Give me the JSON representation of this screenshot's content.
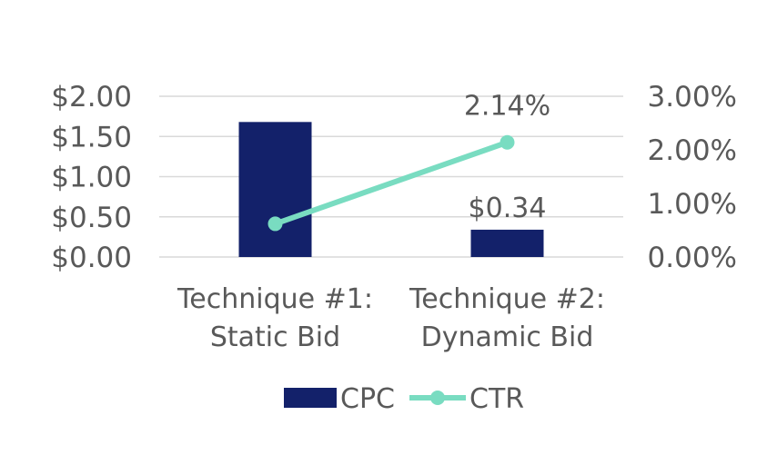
{
  "chart_data": {
    "type": "bar",
    "categories": [
      [
        "Technique #1:",
        "Static Bid"
      ],
      [
        "Technique #2:",
        "Dynamic Bid"
      ]
    ],
    "series": [
      {
        "name": "CPC",
        "kind": "bar",
        "axis": "left",
        "values": [
          1.68,
          0.34
        ],
        "data_labels": [
          "",
          "$0.34"
        ]
      },
      {
        "name": "CTR",
        "kind": "line",
        "axis": "right",
        "values": [
          0.62,
          2.14
        ],
        "data_labels": [
          "",
          "2.14%"
        ]
      }
    ],
    "left_axis": {
      "ylim": [
        0,
        2
      ],
      "ticks": [
        0,
        0.5,
        1,
        1.5,
        2
      ],
      "tick_labels": [
        "$0.00",
        "$0.50",
        "$1.00",
        "$1.50",
        "$2.00"
      ]
    },
    "right_axis": {
      "ylim": [
        0,
        3
      ],
      "ticks": [
        0,
        1,
        2,
        3
      ],
      "tick_labels": [
        "0.00%",
        "1.00%",
        "2.00%",
        "3.00%"
      ]
    },
    "grid": true,
    "legend": "bottom",
    "colors": {
      "CPC": "#13216a",
      "CTR": "#79dcc1",
      "text": "#595959",
      "grid": "#d9d9d9"
    }
  }
}
